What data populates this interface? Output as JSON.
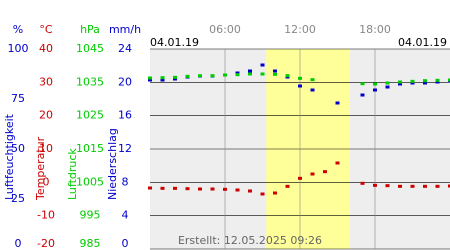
{
  "chart_data": {
    "type": "scatter",
    "date_left": "04.01.19",
    "date_right": "04.01.19",
    "footer": "Erstellt: 12.05.2025 09:26",
    "xlim": [
      0,
      24
    ],
    "xticks": [
      {
        "value": 6,
        "label": "06:00"
      },
      {
        "value": 12,
        "label": "12:00"
      },
      {
        "value": 18,
        "label": "18:00"
      }
    ],
    "highlight": [
      9.3,
      16
    ],
    "axes": [
      {
        "unit": "%",
        "label": "Luftfeuchtigkeit",
        "color": "#0000cc",
        "lim": [
          0,
          100
        ],
        "ticks": [
          0,
          25,
          50,
          75,
          100
        ]
      },
      {
        "unit": "°C",
        "label": "Temperatur",
        "color": "#cc0000",
        "lim": [
          -20,
          40
        ],
        "ticks": [
          -20,
          -10,
          0,
          10,
          20,
          30,
          40
        ]
      },
      {
        "unit": "hPa",
        "label": "Luftdruck",
        "color": "#00cc00",
        "lim": [
          985,
          1045
        ],
        "ticks": [
          985,
          995,
          1005,
          1015,
          1025,
          1035,
          1045
        ]
      },
      {
        "unit": "mm/h",
        "label": "Niederschlag",
        "color": "#0000cc",
        "lim": [
          0,
          24
        ],
        "ticks": [
          0,
          4,
          8,
          12,
          16,
          20,
          24
        ]
      }
    ],
    "x": [
      0,
      1,
      2,
      3,
      4,
      5,
      6,
      7,
      8,
      9,
      10,
      11,
      12,
      13,
      14,
      15,
      16,
      17,
      18,
      19,
      20,
      21,
      22,
      23,
      24
    ],
    "series": [
      {
        "axis": 0,
        "color": "#0000cc",
        "values": [
          84.5,
          84.5,
          85,
          86,
          86.5,
          86.5,
          87,
          88,
          89,
          92,
          89,
          86,
          81.5,
          79.5,
          null,
          73,
          null,
          77,
          79.5,
          81,
          82.5,
          83,
          83,
          83.5,
          84
        ]
      },
      {
        "axis": 2,
        "color": "#00cc00",
        "values": [
          1036.3,
          1036.4,
          1036.5,
          1036.8,
          1037,
          1037,
          1037.2,
          1037.3,
          1037.5,
          1037.5,
          1037.4,
          1037,
          1036.2,
          1035.8,
          null,
          null,
          null,
          1034.6,
          1034.5,
          1034.8,
          1035.1,
          1035.3,
          1035.5,
          1035.6,
          1035.7
        ]
      },
      {
        "axis": 1,
        "color": "#cc0000",
        "values": [
          -1.7,
          -1.8,
          -1.8,
          -1.9,
          -2,
          -2,
          -2.1,
          -2.3,
          -2.6,
          -3.5,
          -3.2,
          -1.2,
          1.2,
          2.5,
          3.2,
          5.8,
          null,
          -0.3,
          -0.9,
          -1,
          -1.2,
          -1.2,
          -1.2,
          -1.2,
          -1.1
        ]
      }
    ]
  }
}
